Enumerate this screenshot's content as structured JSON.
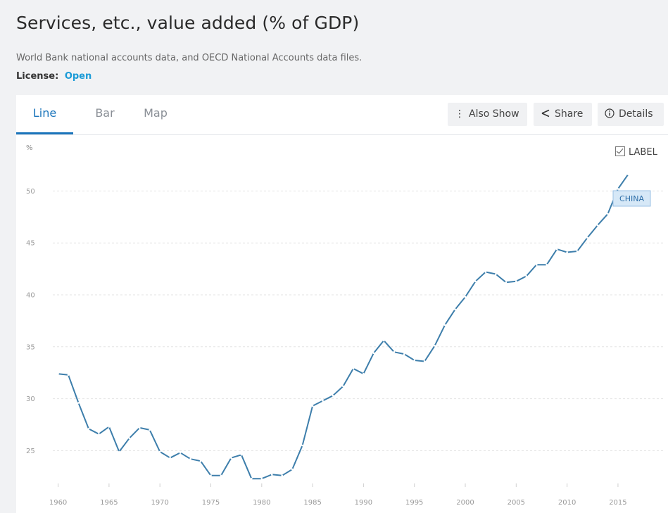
{
  "header": {
    "title": "Services, etc., value added (% of GDP)",
    "source": "World Bank national accounts data, and OECD National Accounts data files.",
    "license_label": "License:",
    "license_value": "Open"
  },
  "tabs": [
    {
      "label": "Line"
    },
    {
      "label": "Bar"
    },
    {
      "label": "Map"
    }
  ],
  "toolbar": {
    "also_show_label": "Also Show",
    "share_label": "Share",
    "details_label": "Details"
  },
  "label_toggle": "LABEL",
  "colors": {
    "series": "#3d7eab",
    "accent": "#1b75bb",
    "license": "#1a9bd7",
    "series_label_bg": "#d6e8f7",
    "series_label_border": "#9bc1e4"
  },
  "chart_data": {
    "type": "line",
    "title": "Services, etc., value added (% of GDP)",
    "ylabel": "%",
    "xlabel": "",
    "ylim": [
      21.3,
      54.5
    ],
    "xlim": [
      1958.3,
      2019.5
    ],
    "yticks": [
      25,
      30,
      35,
      40,
      45,
      50
    ],
    "xticks": [
      1960,
      1965,
      1970,
      1975,
      1980,
      1985,
      1990,
      1995,
      2000,
      2005,
      2010,
      2015
    ],
    "grid": true,
    "series": [
      {
        "name": "CHINA",
        "x": [
          1960,
          1961,
          1962,
          1963,
          1964,
          1965,
          1966,
          1967,
          1968,
          1969,
          1970,
          1971,
          1972,
          1973,
          1974,
          1975,
          1976,
          1977,
          1978,
          1979,
          1980,
          1981,
          1982,
          1983,
          1984,
          1985,
          1986,
          1987,
          1988,
          1989,
          1990,
          1991,
          1992,
          1993,
          1994,
          1995,
          1996,
          1997,
          1998,
          1999,
          2000,
          2001,
          2002,
          2003,
          2004,
          2005,
          2006,
          2007,
          2008,
          2009,
          2010,
          2011,
          2012,
          2013,
          2014,
          2015,
          2016
        ],
        "values": [
          32.4,
          32.3,
          29.6,
          27.1,
          26.6,
          27.3,
          24.9,
          26.2,
          27.2,
          27.0,
          24.9,
          24.3,
          24.8,
          24.2,
          24.0,
          22.6,
          22.6,
          24.3,
          24.6,
          22.3,
          22.3,
          22.7,
          22.6,
          23.2,
          25.5,
          29.3,
          29.8,
          30.3,
          31.2,
          32.9,
          32.4,
          34.4,
          35.6,
          34.5,
          34.3,
          33.7,
          33.6,
          35.1,
          37.1,
          38.6,
          39.8,
          41.3,
          42.2,
          42.0,
          41.2,
          41.3,
          41.8,
          42.9,
          42.9,
          44.4,
          44.1,
          44.2,
          45.5,
          46.7,
          47.8,
          50.2,
          51.6
        ]
      }
    ]
  }
}
